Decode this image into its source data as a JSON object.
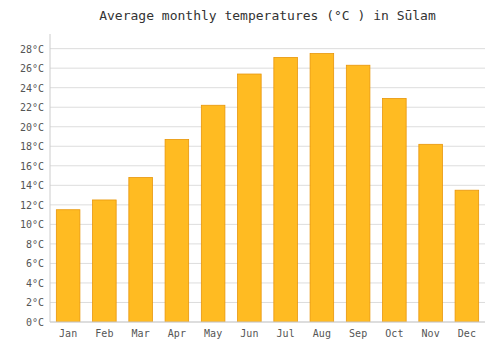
{
  "chart_data": {
    "type": "bar",
    "title": "Average monthly temperatures (°C ) in Sūlam",
    "categories": [
      "Jan",
      "Feb",
      "Mar",
      "Apr",
      "May",
      "Jun",
      "Jul",
      "Aug",
      "Sep",
      "Oct",
      "Nov",
      "Dec"
    ],
    "values": [
      11.5,
      12.5,
      14.8,
      18.7,
      22.2,
      25.4,
      27.1,
      27.5,
      26.3,
      22.9,
      18.2,
      13.5
    ],
    "color": "#FFBB22",
    "ylim": [
      0,
      29.5
    ],
    "yticks": [
      {
        "value": 0,
        "label": "0°C"
      },
      {
        "value": 2,
        "label": "2°C"
      },
      {
        "value": 4,
        "label": "4°C"
      },
      {
        "value": 6,
        "label": "6°C"
      },
      {
        "value": 8,
        "label": "8°C"
      },
      {
        "value": 10,
        "label": "10°C"
      },
      {
        "value": 12,
        "label": "12°C"
      },
      {
        "value": 14,
        "label": "14°C"
      },
      {
        "value": 16,
        "label": "16°C"
      },
      {
        "value": 18,
        "label": "18°C"
      },
      {
        "value": 20,
        "label": "20°C"
      },
      {
        "value": 22,
        "label": "22°C"
      },
      {
        "value": 24,
        "label": "24°C"
      },
      {
        "value": 26,
        "label": "26°C"
      },
      {
        "value": 28,
        "label": "28°C"
      }
    ],
    "grid": true
  }
}
